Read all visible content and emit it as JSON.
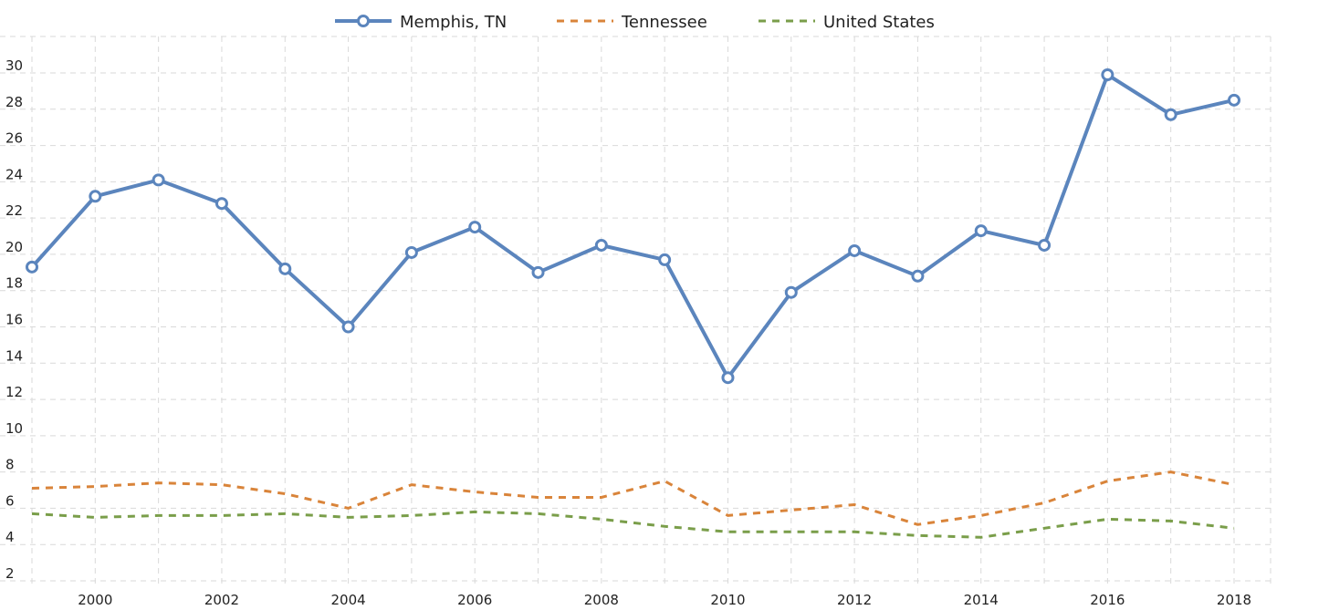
{
  "chart_data": {
    "type": "line",
    "title": "",
    "xlabel": "",
    "ylabel": "",
    "x": [
      1999,
      2000,
      2001,
      2002,
      2003,
      2004,
      2005,
      2006,
      2007,
      2008,
      2009,
      2010,
      2011,
      2012,
      2013,
      2014,
      2015,
      2016,
      2017,
      2018
    ],
    "x_ticks": [
      "2000",
      "2002",
      "2004",
      "2006",
      "2008",
      "2010",
      "2012",
      "2014",
      "2016",
      "2018"
    ],
    "y_ticks": [
      "2",
      "4",
      "6",
      "8",
      "10",
      "12",
      "14",
      "16",
      "18",
      "20",
      "22",
      "24",
      "26",
      "28",
      "30"
    ],
    "xlim": [
      1999,
      2018.5
    ],
    "ylim": [
      2,
      31
    ],
    "grid": true,
    "legend_position": "top-center",
    "series": [
      {
        "name": "Memphis, TN",
        "color": "#5b85bd",
        "style": "solid",
        "markers": true,
        "values": [
          19.3,
          23.2,
          24.1,
          22.8,
          19.2,
          16.0,
          20.1,
          21.5,
          19.0,
          20.5,
          19.7,
          13.2,
          17.9,
          20.2,
          18.8,
          21.3,
          20.5,
          29.9,
          27.7,
          28.5
        ]
      },
      {
        "name": "Tennessee",
        "color": "#d9843a",
        "style": "dashed",
        "markers": false,
        "values": [
          7.1,
          7.2,
          7.4,
          7.3,
          6.8,
          6.0,
          7.3,
          6.9,
          6.6,
          6.6,
          7.5,
          5.6,
          5.9,
          6.2,
          5.1,
          5.6,
          6.3,
          7.5,
          8.0,
          7.3
        ]
      },
      {
        "name": "United States",
        "color": "#7a9e4a",
        "style": "dashed",
        "markers": false,
        "values": [
          5.7,
          5.5,
          5.6,
          5.6,
          5.7,
          5.5,
          5.6,
          5.8,
          5.7,
          5.4,
          5.0,
          4.7,
          4.7,
          4.7,
          4.5,
          4.4,
          4.9,
          5.4,
          5.3,
          4.9
        ]
      }
    ]
  }
}
